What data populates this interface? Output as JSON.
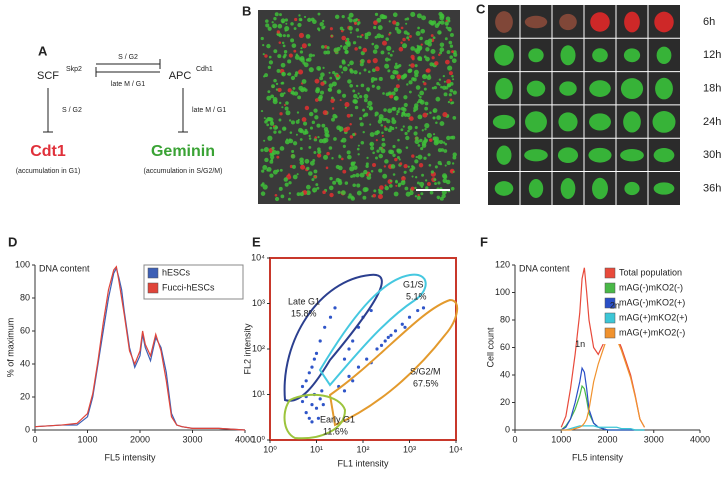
{
  "panel_labels": [
    "A",
    "B",
    "C",
    "D",
    "E",
    "F"
  ],
  "diagram": {
    "scf": "SCF",
    "skp2": "Skp2",
    "apc": "APC",
    "cdh1": "Cdh1",
    "edges": [
      "S / G2",
      "late M / G1",
      "S / G2",
      "late M / G1"
    ],
    "cdt1": "Cdt1",
    "cdt1_note": "(accumulation in G1)",
    "geminin": "Geminin",
    "geminin_note": "(accumulation in S/G2/M)"
  },
  "timelapse": {
    "timepoints": [
      "6h",
      "12h",
      "18h",
      "24h",
      "30h",
      "36h"
    ]
  },
  "chart_data": [
    {
      "type": "line",
      "annotation": "DNA content",
      "xlabel": "FL5 intensity",
      "ylabel": "% of maximum",
      "x": [
        0,
        500,
        800,
        1000,
        1100,
        1200,
        1300,
        1400,
        1500,
        1550,
        1600,
        1650,
        1700,
        1800,
        1900,
        2000,
        2050,
        2100,
        2200,
        2300,
        2400,
        2500,
        2600,
        2700,
        2800,
        3000,
        3500,
        4000
      ],
      "series": [
        {
          "name": "hESCs",
          "color": "#3d5fb5",
          "values": [
            2,
            3,
            3,
            8,
            20,
            40,
            60,
            80,
            95,
            98,
            92,
            85,
            72,
            50,
            38,
            45,
            58,
            50,
            42,
            56,
            50,
            35,
            10,
            3,
            2,
            1,
            1,
            0
          ]
        },
        {
          "name": "Fucci-hESCs",
          "color": "#e0453a",
          "values": [
            2,
            3,
            4,
            10,
            22,
            42,
            65,
            85,
            97,
            99,
            90,
            80,
            70,
            48,
            40,
            48,
            60,
            52,
            45,
            58,
            48,
            30,
            8,
            3,
            2,
            1,
            1,
            0
          ]
        }
      ],
      "xlim": [
        0,
        4000
      ],
      "xticks": [
        0,
        1000,
        2000,
        3000,
        4000
      ],
      "ylim": [
        0,
        100
      ],
      "yticks": [
        0,
        20,
        40,
        60,
        80,
        100
      ],
      "legend": "upper right"
    },
    {
      "type": "scatter",
      "xlabel": "FL1 intensity",
      "ylabel": "FL2 intensity",
      "color": "#2f55c8",
      "log_scale": true,
      "x": [
        6,
        8,
        10,
        7,
        12,
        9,
        5,
        11,
        14,
        8,
        6,
        13,
        6,
        8,
        10,
        5,
        12,
        15,
        9,
        20,
        7,
        25,
        40,
        60,
        80,
        100,
        150,
        50,
        30,
        50,
        80,
        120,
        200,
        300,
        500,
        700,
        1000,
        1500,
        60,
        150,
        250,
        400,
        800,
        2000,
        40,
        350
      ],
      "y": [
        4,
        6,
        5,
        3,
        8,
        10,
        7,
        3,
        6,
        2.5,
        9,
        12,
        20,
        40,
        80,
        15,
        150,
        300,
        60,
        500,
        30,
        800,
        60,
        150,
        300,
        500,
        700,
        100,
        15,
        25,
        40,
        60,
        100,
        150,
        250,
        350,
        500,
        700,
        20,
        50,
        120,
        200,
        300,
        800,
        12,
        180
      ],
      "xlim": [
        1,
        10000
      ],
      "ylim": [
        1,
        10000
      ],
      "xticks": [
        {
          "value": 1,
          "label": "10⁰"
        },
        {
          "value": 10,
          "label": "10¹"
        },
        {
          "value": 100,
          "label": "10²"
        },
        {
          "value": 1000,
          "label": "10³"
        },
        {
          "value": 10000,
          "label": "10⁴"
        }
      ],
      "yticks": [
        {
          "value": 1,
          "label": "10⁰"
        },
        {
          "value": 10,
          "label": "10¹"
        },
        {
          "value": 100,
          "label": "10²"
        },
        {
          "value": 1000,
          "label": "10³"
        },
        {
          "value": 10000,
          "label": "10⁴"
        }
      ],
      "gates": {
        "names": [
          "Late G1",
          "G1/S",
          "S/G2/M",
          "Early G1"
        ],
        "colors": [
          "#2b3f8f",
          "#45c8e0",
          "#e39a2d",
          "#9cc43c"
        ],
        "values": [
          15.8,
          5.1,
          67.5,
          11.6
        ],
        "value_labels": [
          "15.8%",
          "5.1%",
          "67.5%",
          "11.6%"
        ]
      },
      "frame_color": "#c8382b"
    },
    {
      "type": "line",
      "annotation": "DNA content",
      "xlabel": "FL5 intensity",
      "ylabel": "Cell count",
      "peak_labels": [
        "1n",
        "2n"
      ],
      "x": [
        1000,
        1100,
        1200,
        1300,
        1400,
        1450,
        1500,
        1550,
        1600,
        1700,
        1800,
        1900,
        2000,
        2100,
        2200,
        2300,
        2400,
        2500,
        2600,
        2700,
        2800
      ],
      "series": [
        {
          "name": "Total population",
          "color": "#e84a3b",
          "values": [
            2,
            10,
            30,
            55,
            85,
            110,
            118,
            100,
            80,
            60,
            55,
            62,
            70,
            78,
            68,
            60,
            50,
            40,
            25,
            8,
            2
          ]
        },
        {
          "name": "mAG(-)mKO2(-)",
          "color": "#49b847",
          "values": [
            0,
            3,
            8,
            15,
            25,
            32,
            30,
            22,
            12,
            5,
            2,
            1,
            0,
            0,
            0,
            0,
            0,
            0,
            0,
            0,
            0
          ]
        },
        {
          "name": "mAG(-)mKO2(+)",
          "color": "#2a4fc7",
          "values": [
            0,
            2,
            8,
            20,
            35,
            45,
            42,
            30,
            15,
            5,
            2,
            1,
            0,
            0,
            0,
            0,
            0,
            0,
            0,
            0,
            0
          ]
        },
        {
          "name": "mAG(+)mKO2(+)",
          "color": "#3cc6d6",
          "values": [
            0,
            0,
            1,
            2,
            3,
            3,
            3,
            3,
            3,
            3,
            2,
            2,
            2,
            2,
            2,
            1,
            1,
            1,
            0,
            0,
            0
          ]
        },
        {
          "name": "mAG(+)mKO2(-)",
          "color": "#f0922e",
          "values": [
            0,
            0,
            0,
            1,
            2,
            3,
            5,
            8,
            15,
            35,
            48,
            58,
            68,
            75,
            66,
            58,
            48,
            38,
            24,
            8,
            2
          ]
        }
      ],
      "xlim": [
        0,
        4000
      ],
      "xticks": [
        0,
        1000,
        2000,
        3000,
        4000
      ],
      "ylim": [
        0,
        120
      ],
      "yticks": [
        0,
        20,
        40,
        60,
        80,
        100,
        120
      ],
      "legend": "upper right"
    }
  ]
}
